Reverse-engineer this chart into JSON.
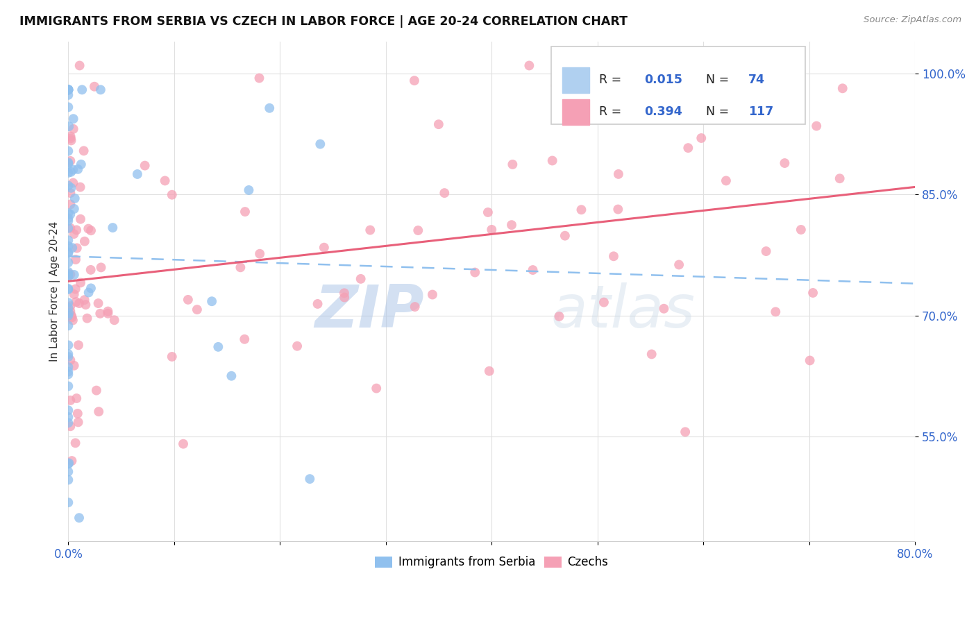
{
  "title": "IMMIGRANTS FROM SERBIA VS CZECH IN LABOR FORCE | AGE 20-24 CORRELATION CHART",
  "source": "Source: ZipAtlas.com",
  "ylabel": "In Labor Force | Age 20-24",
  "xlim": [
    0.0,
    0.8
  ],
  "ylim": [
    0.42,
    1.04
  ],
  "x_ticks": [
    0.0,
    0.1,
    0.2,
    0.3,
    0.4,
    0.5,
    0.6,
    0.7,
    0.8
  ],
  "y_ticks": [
    0.55,
    0.7,
    0.85,
    1.0
  ],
  "x_tick_labels": [
    "0.0%",
    "",
    "",
    "",
    "",
    "",
    "",
    "",
    "80.0%"
  ],
  "y_tick_labels": [
    "55.0%",
    "70.0%",
    "85.0%",
    "100.0%"
  ],
  "serbia_R": 0.015,
  "serbia_N": 74,
  "czech_R": 0.394,
  "czech_N": 117,
  "serbia_color": "#90C0EE",
  "czech_color": "#F5A0B5",
  "serbia_line_color": "#90C0EE",
  "czech_line_color": "#E8607A",
  "watermark_zip": "ZIP",
  "watermark_atlas": "atlas",
  "background_color": "#ffffff",
  "grid_color": "#e0e0e0",
  "legend_box_color": "#f0f0f0",
  "legend_border_color": "#cccccc",
  "axis_label_color": "#3366cc",
  "text_color": "#333333",
  "source_color": "#888888"
}
